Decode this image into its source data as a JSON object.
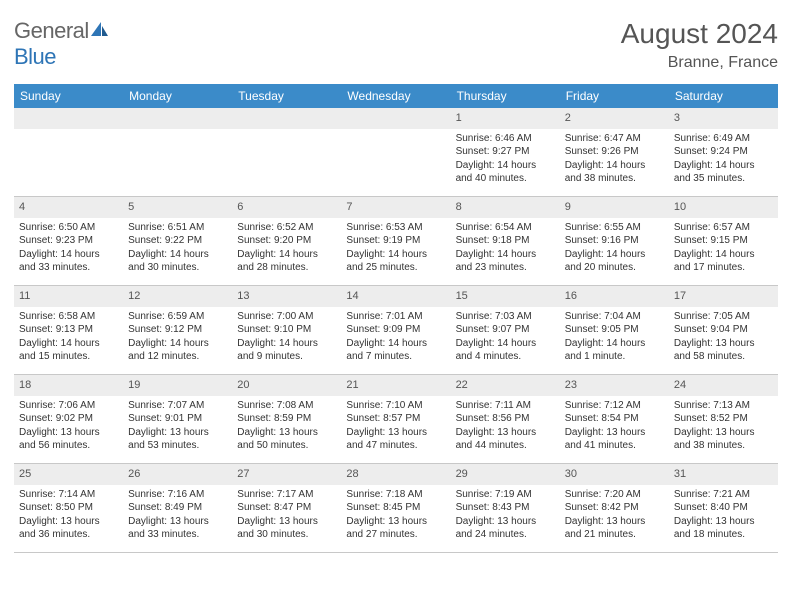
{
  "logo": {
    "text_gray": "General",
    "text_blue": "Blue"
  },
  "title": "August 2024",
  "location": "Branne, France",
  "colors": {
    "header_bg": "#3b8bc9",
    "header_text": "#ffffff",
    "daynum_bg": "#ededed",
    "text": "#333333",
    "title_text": "#555555",
    "border": "#c8c8c8"
  },
  "day_names": [
    "Sunday",
    "Monday",
    "Tuesday",
    "Wednesday",
    "Thursday",
    "Friday",
    "Saturday"
  ],
  "weeks": [
    [
      {
        "n": "",
        "sr": "",
        "ss": "",
        "dl": ""
      },
      {
        "n": "",
        "sr": "",
        "ss": "",
        "dl": ""
      },
      {
        "n": "",
        "sr": "",
        "ss": "",
        "dl": ""
      },
      {
        "n": "",
        "sr": "",
        "ss": "",
        "dl": ""
      },
      {
        "n": "1",
        "sr": "Sunrise: 6:46 AM",
        "ss": "Sunset: 9:27 PM",
        "dl": "Daylight: 14 hours and 40 minutes."
      },
      {
        "n": "2",
        "sr": "Sunrise: 6:47 AM",
        "ss": "Sunset: 9:26 PM",
        "dl": "Daylight: 14 hours and 38 minutes."
      },
      {
        "n": "3",
        "sr": "Sunrise: 6:49 AM",
        "ss": "Sunset: 9:24 PM",
        "dl": "Daylight: 14 hours and 35 minutes."
      }
    ],
    [
      {
        "n": "4",
        "sr": "Sunrise: 6:50 AM",
        "ss": "Sunset: 9:23 PM",
        "dl": "Daylight: 14 hours and 33 minutes."
      },
      {
        "n": "5",
        "sr": "Sunrise: 6:51 AM",
        "ss": "Sunset: 9:22 PM",
        "dl": "Daylight: 14 hours and 30 minutes."
      },
      {
        "n": "6",
        "sr": "Sunrise: 6:52 AM",
        "ss": "Sunset: 9:20 PM",
        "dl": "Daylight: 14 hours and 28 minutes."
      },
      {
        "n": "7",
        "sr": "Sunrise: 6:53 AM",
        "ss": "Sunset: 9:19 PM",
        "dl": "Daylight: 14 hours and 25 minutes."
      },
      {
        "n": "8",
        "sr": "Sunrise: 6:54 AM",
        "ss": "Sunset: 9:18 PM",
        "dl": "Daylight: 14 hours and 23 minutes."
      },
      {
        "n": "9",
        "sr": "Sunrise: 6:55 AM",
        "ss": "Sunset: 9:16 PM",
        "dl": "Daylight: 14 hours and 20 minutes."
      },
      {
        "n": "10",
        "sr": "Sunrise: 6:57 AM",
        "ss": "Sunset: 9:15 PM",
        "dl": "Daylight: 14 hours and 17 minutes."
      }
    ],
    [
      {
        "n": "11",
        "sr": "Sunrise: 6:58 AM",
        "ss": "Sunset: 9:13 PM",
        "dl": "Daylight: 14 hours and 15 minutes."
      },
      {
        "n": "12",
        "sr": "Sunrise: 6:59 AM",
        "ss": "Sunset: 9:12 PM",
        "dl": "Daylight: 14 hours and 12 minutes."
      },
      {
        "n": "13",
        "sr": "Sunrise: 7:00 AM",
        "ss": "Sunset: 9:10 PM",
        "dl": "Daylight: 14 hours and 9 minutes."
      },
      {
        "n": "14",
        "sr": "Sunrise: 7:01 AM",
        "ss": "Sunset: 9:09 PM",
        "dl": "Daylight: 14 hours and 7 minutes."
      },
      {
        "n": "15",
        "sr": "Sunrise: 7:03 AM",
        "ss": "Sunset: 9:07 PM",
        "dl": "Daylight: 14 hours and 4 minutes."
      },
      {
        "n": "16",
        "sr": "Sunrise: 7:04 AM",
        "ss": "Sunset: 9:05 PM",
        "dl": "Daylight: 14 hours and 1 minute."
      },
      {
        "n": "17",
        "sr": "Sunrise: 7:05 AM",
        "ss": "Sunset: 9:04 PM",
        "dl": "Daylight: 13 hours and 58 minutes."
      }
    ],
    [
      {
        "n": "18",
        "sr": "Sunrise: 7:06 AM",
        "ss": "Sunset: 9:02 PM",
        "dl": "Daylight: 13 hours and 56 minutes."
      },
      {
        "n": "19",
        "sr": "Sunrise: 7:07 AM",
        "ss": "Sunset: 9:01 PM",
        "dl": "Daylight: 13 hours and 53 minutes."
      },
      {
        "n": "20",
        "sr": "Sunrise: 7:08 AM",
        "ss": "Sunset: 8:59 PM",
        "dl": "Daylight: 13 hours and 50 minutes."
      },
      {
        "n": "21",
        "sr": "Sunrise: 7:10 AM",
        "ss": "Sunset: 8:57 PM",
        "dl": "Daylight: 13 hours and 47 minutes."
      },
      {
        "n": "22",
        "sr": "Sunrise: 7:11 AM",
        "ss": "Sunset: 8:56 PM",
        "dl": "Daylight: 13 hours and 44 minutes."
      },
      {
        "n": "23",
        "sr": "Sunrise: 7:12 AM",
        "ss": "Sunset: 8:54 PM",
        "dl": "Daylight: 13 hours and 41 minutes."
      },
      {
        "n": "24",
        "sr": "Sunrise: 7:13 AM",
        "ss": "Sunset: 8:52 PM",
        "dl": "Daylight: 13 hours and 38 minutes."
      }
    ],
    [
      {
        "n": "25",
        "sr": "Sunrise: 7:14 AM",
        "ss": "Sunset: 8:50 PM",
        "dl": "Daylight: 13 hours and 36 minutes."
      },
      {
        "n": "26",
        "sr": "Sunrise: 7:16 AM",
        "ss": "Sunset: 8:49 PM",
        "dl": "Daylight: 13 hours and 33 minutes."
      },
      {
        "n": "27",
        "sr": "Sunrise: 7:17 AM",
        "ss": "Sunset: 8:47 PM",
        "dl": "Daylight: 13 hours and 30 minutes."
      },
      {
        "n": "28",
        "sr": "Sunrise: 7:18 AM",
        "ss": "Sunset: 8:45 PM",
        "dl": "Daylight: 13 hours and 27 minutes."
      },
      {
        "n": "29",
        "sr": "Sunrise: 7:19 AM",
        "ss": "Sunset: 8:43 PM",
        "dl": "Daylight: 13 hours and 24 minutes."
      },
      {
        "n": "30",
        "sr": "Sunrise: 7:20 AM",
        "ss": "Sunset: 8:42 PM",
        "dl": "Daylight: 13 hours and 21 minutes."
      },
      {
        "n": "31",
        "sr": "Sunrise: 7:21 AM",
        "ss": "Sunset: 8:40 PM",
        "dl": "Daylight: 13 hours and 18 minutes."
      }
    ]
  ]
}
